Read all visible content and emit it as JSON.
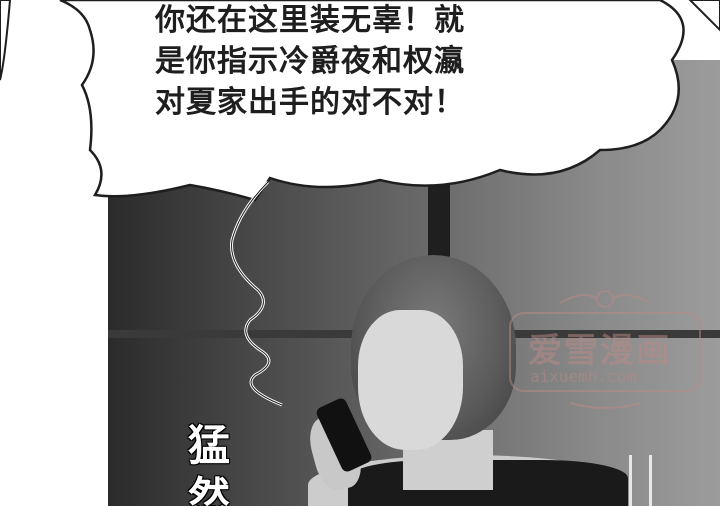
{
  "speech_bubble": {
    "lines": [
      "你还在这里装无辜！就",
      "是你指示冷爵夜和权瀛",
      "对夏家出手的对不对！"
    ]
  },
  "sound_effect": {
    "chars": [
      "猛",
      "然"
    ]
  },
  "watermark": {
    "brand": "爱雪漫画",
    "url": "aixuemh.com"
  },
  "colors": {
    "bubble_fill": "#ffffff",
    "bubble_stroke": "#1e1e1e",
    "text": "#1e1e1e",
    "watermark": "#b98b86"
  }
}
